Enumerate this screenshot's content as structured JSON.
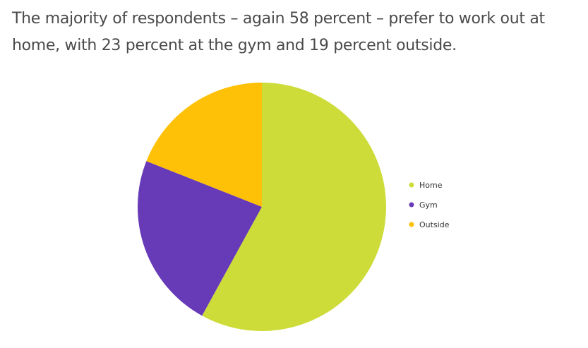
{
  "article": {
    "paragraph": "The majority of respondents – again 58 percent – prefer to work out at home, with 23 percent at the gym and 19 percent outside."
  },
  "chart_data": {
    "type": "pie",
    "title": "",
    "categories": [
      "Home",
      "Gym",
      "Outside"
    ],
    "values": [
      58,
      23,
      19
    ],
    "colors": [
      "#cddc39",
      "#673ab7",
      "#ffc107"
    ],
    "start_angle_deg": 0,
    "direction": "clockwise",
    "legend": {
      "placement": "right",
      "entries": [
        "Home",
        "Gym",
        "Outside"
      ]
    }
  }
}
